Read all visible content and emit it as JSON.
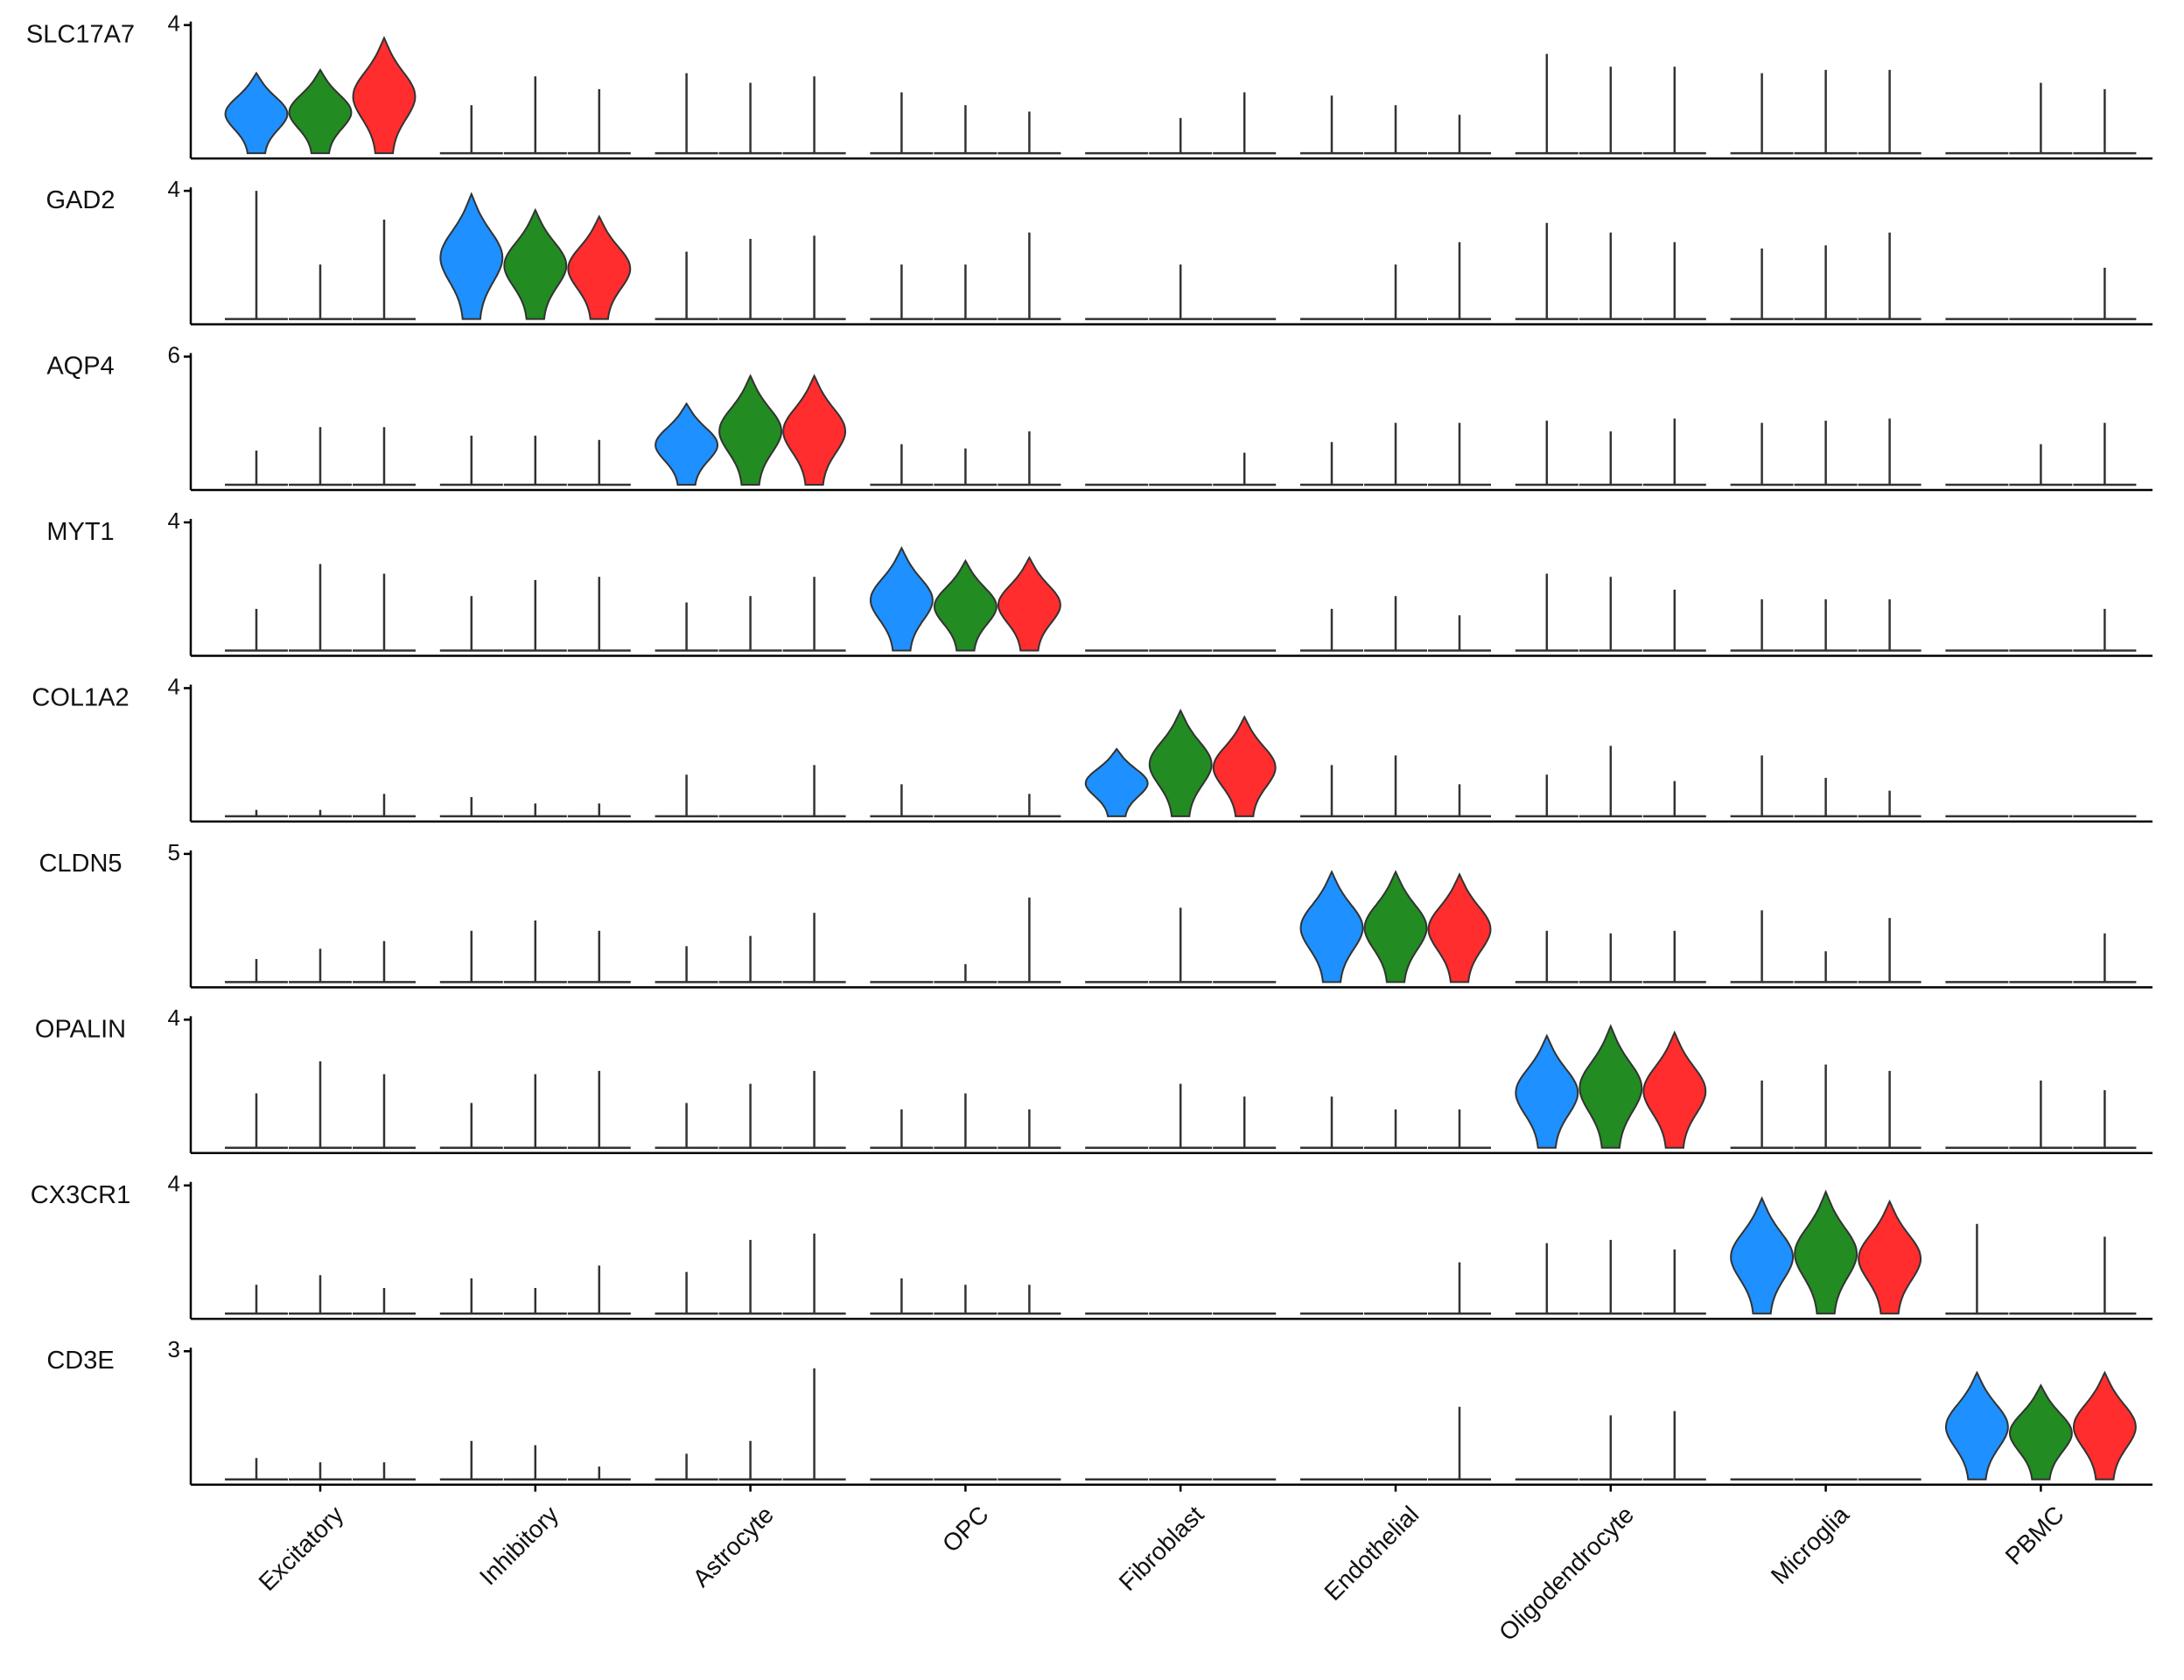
{
  "chart_data": {
    "type": "violin",
    "categories": [
      "Excitatory",
      "Inhibitory",
      "Astrocyte",
      "OPC",
      "Fibroblast",
      "Endothelial",
      "Oligodendrocyte",
      "Microglia",
      "PBMC"
    ],
    "colors": [
      "#1e90ff",
      "#228b22",
      "#ff2d2d"
    ],
    "panels": [
      {
        "title": "SLC17A7",
        "ylim": [
          0,
          4
        ],
        "yticks": [
          4
        ],
        "highlight": 0,
        "values": [
          [
            2.5,
            2.6,
            3.6
          ],
          [
            1.5,
            2.4,
            2.0
          ],
          [
            2.5,
            2.2,
            2.4
          ],
          [
            1.9,
            1.5,
            1.3
          ],
          [
            0,
            1.1,
            1.9
          ],
          [
            1.8,
            1.5,
            1.2
          ],
          [
            3.1,
            2.7,
            2.7
          ],
          [
            2.5,
            2.6,
            2.6
          ],
          [
            0,
            2.2,
            2.0
          ]
        ]
      },
      {
        "title": "GAD2",
        "ylim": [
          0,
          4
        ],
        "yticks": [
          4
        ],
        "highlight": 1,
        "values": [
          [
            4.0,
            1.7,
            3.1
          ],
          [
            3.9,
            3.4,
            3.2
          ],
          [
            2.1,
            2.5,
            2.6
          ],
          [
            1.7,
            1.7,
            2.7
          ],
          [
            0,
            1.7,
            0
          ],
          [
            0,
            1.7,
            2.4
          ],
          [
            3.0,
            2.7,
            2.4
          ],
          [
            2.2,
            2.3,
            2.7
          ],
          [
            0,
            0,
            1.6
          ]
        ]
      },
      {
        "title": "AQP4",
        "ylim": [
          0,
          6
        ],
        "yticks": [
          6
        ],
        "highlight": 2,
        "values": [
          [
            1.6,
            2.7,
            2.7
          ],
          [
            2.3,
            2.3,
            2.1
          ],
          [
            3.8,
            5.1,
            5.1
          ],
          [
            1.9,
            1.7,
            2.5
          ],
          [
            0,
            0,
            1.5
          ],
          [
            2.0,
            2.9,
            2.9
          ],
          [
            3.0,
            2.5,
            3.1
          ],
          [
            2.9,
            3.0,
            3.1
          ],
          [
            0,
            1.9,
            2.9
          ]
        ]
      },
      {
        "title": "MYT1",
        "ylim": [
          0,
          4
        ],
        "yticks": [
          4
        ],
        "highlight": 3,
        "values": [
          [
            1.3,
            2.7,
            2.4
          ],
          [
            1.7,
            2.2,
            2.3
          ],
          [
            1.5,
            1.7,
            2.3
          ],
          [
            3.2,
            2.8,
            2.9
          ],
          [
            0,
            0,
            0
          ],
          [
            1.3,
            1.7,
            1.1
          ],
          [
            2.4,
            2.3,
            1.9
          ],
          [
            1.6,
            1.6,
            1.6
          ],
          [
            0,
            0,
            1.3
          ]
        ]
      },
      {
        "title": "COL1A2",
        "ylim": [
          0,
          4
        ],
        "yticks": [
          4
        ],
        "highlight": 4,
        "values": [
          [
            0.2,
            0.2,
            0.7
          ],
          [
            0.6,
            0.4,
            0.4
          ],
          [
            1.3,
            0,
            1.6
          ],
          [
            1.0,
            0,
            0.7
          ],
          [
            2.1,
            3.3,
            3.1
          ],
          [
            1.6,
            1.9,
            1.0
          ],
          [
            1.3,
            2.2,
            1.1
          ],
          [
            1.9,
            1.2,
            0.8
          ],
          [
            0,
            0,
            0
          ]
        ]
      },
      {
        "title": "CLDN5",
        "ylim": [
          0,
          5
        ],
        "yticks": [
          5
        ],
        "highlight": 5,
        "values": [
          [
            0.9,
            1.3,
            1.6
          ],
          [
            2.0,
            2.4,
            2.0
          ],
          [
            1.4,
            1.8,
            2.7
          ],
          [
            0,
            0.7,
            3.3
          ],
          [
            0,
            2.9,
            0
          ],
          [
            4.3,
            4.3,
            4.2
          ],
          [
            2.0,
            1.9,
            2.0
          ],
          [
            2.8,
            1.2,
            2.5
          ],
          [
            0,
            0,
            1.9
          ]
        ]
      },
      {
        "title": "OPALIN",
        "ylim": [
          0,
          4
        ],
        "yticks": [
          4
        ],
        "highlight": 6,
        "values": [
          [
            1.7,
            2.7,
            2.3
          ],
          [
            1.4,
            2.3,
            2.4
          ],
          [
            1.4,
            2.0,
            2.4
          ],
          [
            1.2,
            1.7,
            1.2
          ],
          [
            0,
            2.0,
            1.6
          ],
          [
            1.6,
            1.2,
            1.2
          ],
          [
            3.5,
            3.8,
            3.6
          ],
          [
            2.1,
            2.6,
            2.4
          ],
          [
            0,
            2.1,
            1.8
          ]
        ]
      },
      {
        "title": "CX3CR1",
        "ylim": [
          0,
          4
        ],
        "yticks": [
          4
        ],
        "highlight": 7,
        "values": [
          [
            0.9,
            1.2,
            0.8
          ],
          [
            1.1,
            0.8,
            1.5
          ],
          [
            1.3,
            2.3,
            2.5
          ],
          [
            1.1,
            0.9,
            0.9
          ],
          [
            0,
            0,
            0
          ],
          [
            0,
            0,
            1.6
          ],
          [
            2.2,
            2.3,
            2.0
          ],
          [
            3.6,
            3.8,
            3.5
          ],
          [
            2.8,
            0,
            2.4
          ]
        ]
      },
      {
        "title": "CD3E",
        "ylim": [
          0,
          3
        ],
        "yticks": [
          3
        ],
        "highlight": 8,
        "values": [
          [
            0.5,
            0.4,
            0.4
          ],
          [
            0.9,
            0.8,
            0.3
          ],
          [
            0.6,
            0.9,
            2.6
          ],
          [
            0,
            0,
            0
          ],
          [
            0,
            0,
            0
          ],
          [
            0,
            0,
            1.7
          ],
          [
            0,
            1.5,
            1.6
          ],
          [
            0,
            0,
            0
          ],
          [
            2.5,
            2.2,
            2.5
          ]
        ]
      }
    ]
  }
}
